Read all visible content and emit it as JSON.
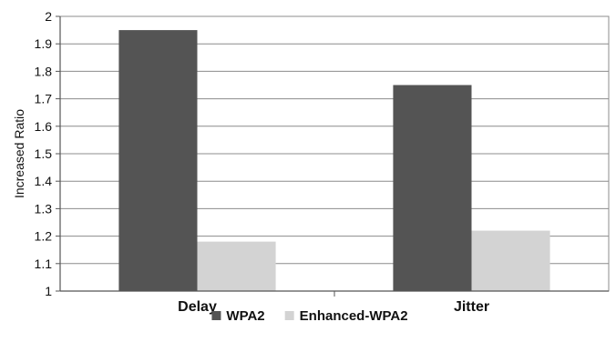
{
  "chart_data": {
    "type": "bar",
    "title": "",
    "xlabel": "",
    "ylabel": "Increased Ratio",
    "categories": [
      "Delay",
      "Jitter"
    ],
    "series": [
      {
        "name": "WPA2",
        "values": [
          1.95,
          1.75
        ],
        "color": "#545454"
      },
      {
        "name": "Enhanced-WPA2",
        "values": [
          1.18,
          1.22
        ],
        "color": "#d3d3d3"
      }
    ],
    "ylim": [
      1,
      2
    ],
    "yticks": [
      "1",
      "1.1",
      "1.2",
      "1.3",
      "1.4",
      "1.5",
      "1.6",
      "1.7",
      "1.8",
      "1.9",
      "2"
    ],
    "grid": true,
    "legend_position": "bottom"
  }
}
